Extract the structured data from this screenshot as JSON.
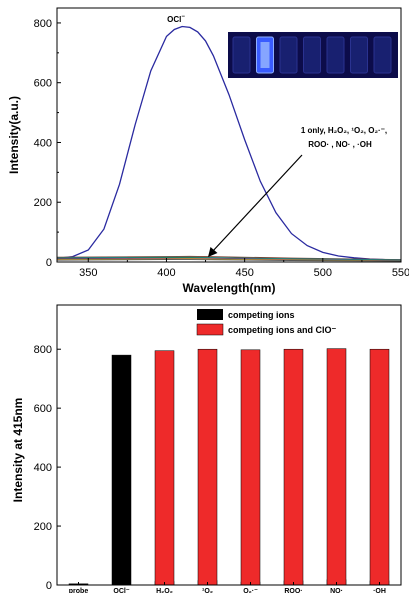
{
  "chart_data": [
    {
      "type": "line",
      "xlabel": "Wavelength(nm)",
      "ylabel": "Intensity(a.u.)",
      "xlim": [
        330,
        550
      ],
      "ylim": [
        0,
        850
      ],
      "xticks": [
        "350",
        "400",
        "450",
        "500",
        "550"
      ],
      "yticks": [
        "0",
        "200",
        "400",
        "600",
        "800"
      ],
      "grid": false,
      "series": [
        {
          "name": "OCl",
          "color": "#2a2aa0",
          "x": [
            330,
            340,
            350,
            360,
            370,
            380,
            390,
            400,
            405,
            410,
            415,
            420,
            425,
            430,
            440,
            450,
            460,
            470,
            480,
            490,
            500,
            510,
            520,
            530,
            540,
            550
          ],
          "y": [
            12,
            18,
            40,
            110,
            260,
            460,
            640,
            755,
            778,
            788,
            785,
            770,
            740,
            690,
            560,
            410,
            270,
            165,
            95,
            55,
            32,
            20,
            14,
            10,
            8,
            7
          ]
        },
        {
          "name": "",
          "color": "#7a3b2a",
          "x": [
            330,
            360,
            400,
            415,
            440,
            480,
            520,
            550
          ],
          "y": [
            16,
            17,
            18,
            19,
            17,
            13,
            10,
            8
          ]
        },
        {
          "name": "",
          "color": "#1a7a2a",
          "x": [
            330,
            360,
            400,
            415,
            440,
            480,
            520,
            550
          ],
          "y": [
            12,
            13,
            14,
            15,
            13,
            10,
            8,
            6
          ]
        },
        {
          "name": "",
          "color": "#8a2a8a",
          "x": [
            330,
            360,
            400,
            415,
            440,
            480,
            520,
            550
          ],
          "y": [
            10,
            11,
            12,
            12,
            11,
            8,
            6,
            5
          ]
        },
        {
          "name": "",
          "color": "#c8a020",
          "x": [
            330,
            360,
            400,
            415,
            440,
            480,
            520,
            550
          ],
          "y": [
            8,
            9,
            10,
            11,
            9,
            7,
            5,
            4
          ]
        },
        {
          "name": "",
          "color": "#208080",
          "x": [
            330,
            360,
            400,
            415,
            440,
            480,
            520,
            550
          ],
          "y": [
            14,
            15,
            16,
            16,
            14,
            11,
            9,
            7
          ]
        },
        {
          "name": "",
          "color": "#555555",
          "x": [
            330,
            360,
            400,
            415,
            440,
            480,
            520,
            550
          ],
          "y": [
            6,
            7,
            8,
            8,
            7,
            5,
            4,
            3
          ]
        }
      ],
      "annotations": {
        "peak_label": "OCl",
        "peak_label_sup": "−",
        "others_line1": "1 only, H₂O₂, ¹O₂, O₂·⁻,",
        "others_line2": "ROO· , NO· , ·OH"
      },
      "inset_vials": 7
    },
    {
      "type": "bar",
      "ylabel": "Intensity at 415nm",
      "ylim": [
        0,
        950
      ],
      "yticks": [
        "0",
        "200",
        "400",
        "600",
        "800"
      ],
      "categories": [
        "probe",
        "OCl⁻",
        "H₂O₂",
        "¹O₂",
        "O₂·⁻",
        "ROO·",
        "NO·",
        "·OH"
      ],
      "series": [
        {
          "name": "competing ions",
          "color": "#000000",
          "values": [
            4,
            780,
            12,
            15,
            10,
            14,
            18,
            14
          ]
        },
        {
          "name": "competing ions and ClO⁻",
          "color": "#ee2a2a",
          "values": [
            null,
            null,
            795,
            800,
            798,
            800,
            802,
            800
          ]
        }
      ],
      "legend": "top-right"
    }
  ]
}
